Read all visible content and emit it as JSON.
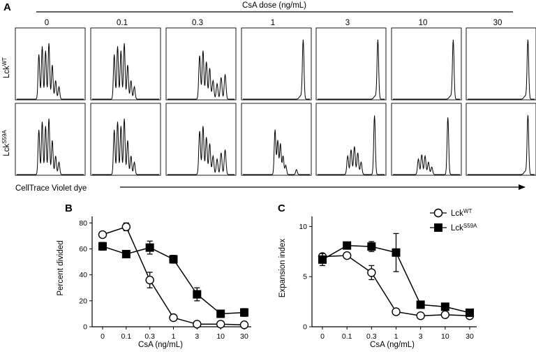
{
  "figure": {
    "panel_a": {
      "letter": "A",
      "dose_header": "CsA dose (ng/mL)",
      "doses": [
        "0",
        "0.1",
        "0.3",
        "1",
        "3",
        "10",
        "30"
      ],
      "rows": [
        {
          "base": "Lck",
          "sup": "WT"
        },
        {
          "base": "Lck",
          "sup": "S59A"
        }
      ],
      "x_axis_label": "CellTrace Violet dye"
    },
    "panel_b": {
      "letter": "B"
    },
    "panel_c": {
      "letter": "C"
    },
    "legend": [
      {
        "base": "Lck",
        "sup": "WT",
        "marker": "open-circle"
      },
      {
        "base": "Lck",
        "sup": "S59A",
        "marker": "filled-square"
      }
    ]
  },
  "chart_data": [
    {
      "type": "line",
      "panel": "B",
      "xlabel": "CsA (ng/mL)",
      "ylabel": "Percent divided",
      "categories": [
        "0",
        "0.1",
        "0.3",
        "1",
        "3",
        "10",
        "30"
      ],
      "ylim": [
        0,
        85
      ],
      "yticks": [
        0,
        20,
        40,
        60,
        80
      ],
      "series": [
        {
          "name": "LckWT",
          "marker": "open-circle",
          "values": [
            71,
            77,
            36,
            7,
            2,
            2,
            1.5
          ],
          "err": [
            2,
            3,
            6,
            1,
            1,
            1,
            1
          ]
        },
        {
          "name": "LckS59A",
          "marker": "filled-square",
          "values": [
            62,
            56,
            61,
            52,
            25,
            10,
            11
          ],
          "err": [
            3,
            2,
            5,
            3,
            5,
            2,
            3
          ]
        }
      ]
    },
    {
      "type": "line",
      "panel": "C",
      "xlabel": "CsA (ng/mL)",
      "ylabel": "Expansion index",
      "categories": [
        "0",
        "0.1",
        "0.3",
        "1",
        "3",
        "10",
        "30"
      ],
      "ylim": [
        0,
        11
      ],
      "yticks": [
        0,
        5,
        10
      ],
      "series": [
        {
          "name": "LckWT",
          "marker": "open-circle",
          "values": [
            7.0,
            7.1,
            5.4,
            1.5,
            1.1,
            1.2,
            1.1
          ],
          "err": [
            0.3,
            0.2,
            0.7,
            0.3,
            0.1,
            0.1,
            0.1
          ]
        },
        {
          "name": "LckS59A",
          "marker": "filled-square",
          "values": [
            6.7,
            8.1,
            8.0,
            7.4,
            2.2,
            2.0,
            1.4
          ],
          "err": [
            0.6,
            0.3,
            0.5,
            1.9,
            0.2,
            0.2,
            0.2
          ]
        }
      ]
    }
  ]
}
